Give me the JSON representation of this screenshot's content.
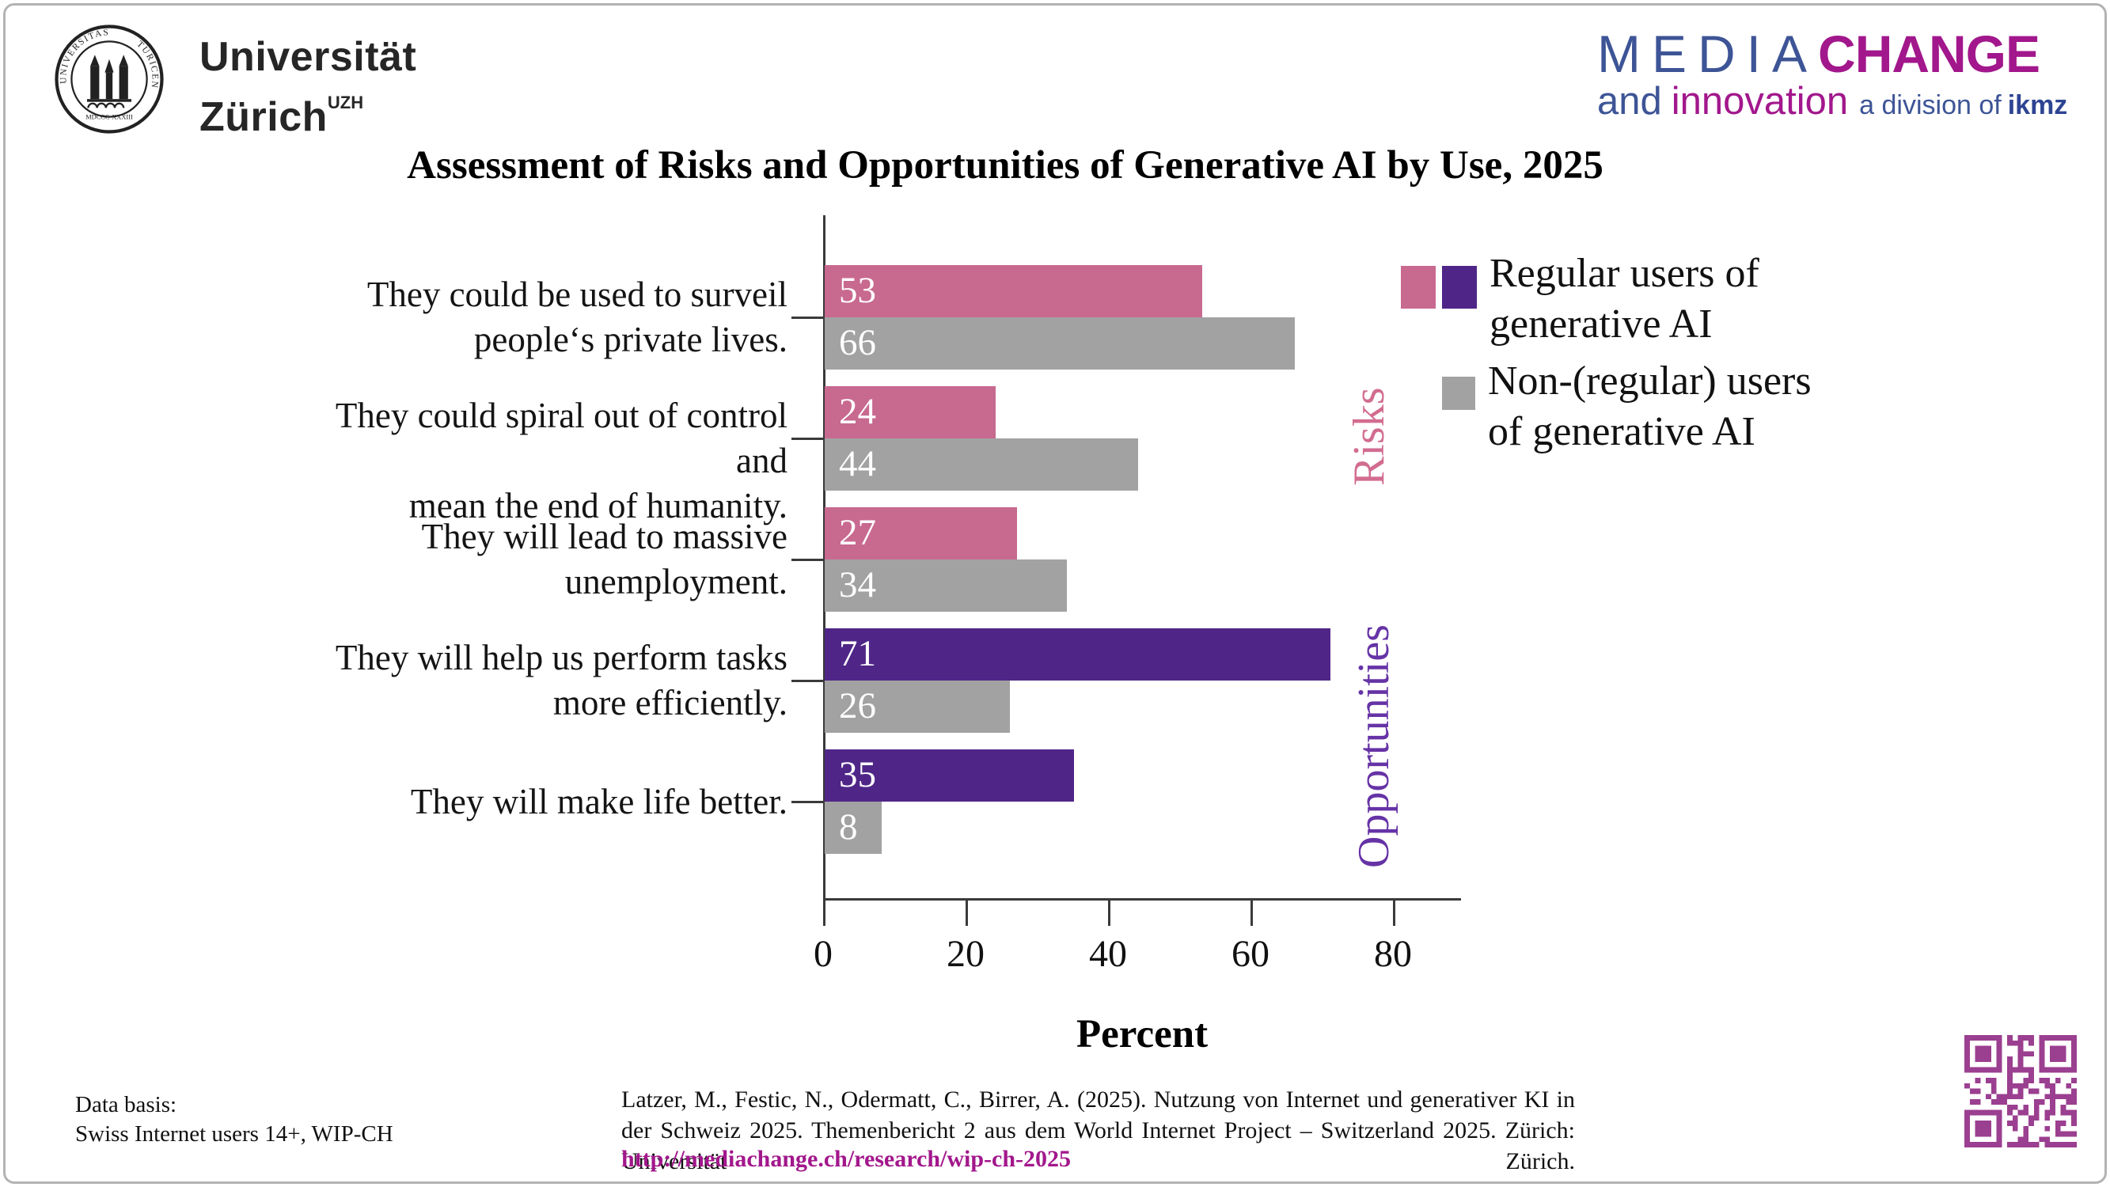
{
  "header": {
    "uzh_logo": {
      "wordmark_line1": "Universität",
      "wordmark_line2": "Zürich",
      "wordmark_sup": "UZH",
      "seal_text_top": "UNIVERSITAS · TURICENSIS",
      "seal_text_bottom": "MDCCC·XXXIII"
    },
    "mediachange_logo": {
      "media": "MEDIA",
      "change": "CHANGE",
      "and": "and",
      "innovation": "innovation",
      "division_of": "a division of",
      "ikmz": "ikmz",
      "blue": "#3d5496",
      "magenta": "#a2178c"
    }
  },
  "title": "Assessment of Risks and Opportunities of Generative AI by Use, 2025",
  "chart_data": {
    "type": "bar",
    "orientation": "horizontal",
    "xlabel": "Percent",
    "x_ticks": [
      "0",
      "20",
      "40",
      "60",
      "80"
    ],
    "xlim": [
      0,
      90
    ],
    "grid": false,
    "legend_position": "right",
    "categories": [
      {
        "line1": "They could be used to surveil",
        "line2": "people‘s private lives."
      },
      {
        "line1": "They could spiral out of control and",
        "line2": "mean the end of humanity."
      },
      {
        "line1": "They will lead to massive",
        "line2": "unemployment."
      },
      {
        "line1": "They will help us perform tasks",
        "line2": "more efficiently."
      },
      {
        "line1": "They will make life better.",
        "line2": ""
      }
    ],
    "series": [
      {
        "name": "Regular users of generative AI",
        "values": [
          53,
          24,
          27,
          71,
          35
        ],
        "bar_colors": [
          "#c8698f",
          "#c8698f",
          "#c8698f",
          "#4f2688",
          "#4f2688"
        ]
      },
      {
        "name": "Non-(regular) users of generative AI",
        "values": [
          66,
          44,
          34,
          26,
          8
        ],
        "bar_colors": [
          "#a2a2a2",
          "#a2a2a2",
          "#a2a2a2",
          "#a2a2a2",
          "#a2a2a2"
        ]
      }
    ],
    "section_labels": [
      {
        "text": "Risks",
        "color": "#d26c90"
      },
      {
        "text": "Opportunities",
        "color": "#6633a6"
      }
    ]
  },
  "legend": {
    "items": [
      {
        "line1": "Regular users of",
        "line2": "generative AI",
        "swatches": [
          "#c8698f",
          "#4f2688"
        ]
      },
      {
        "line1": "Non-(regular) users",
        "line2": "of generative AI",
        "swatches": [
          "#a2a2a2"
        ]
      }
    ]
  },
  "footer": {
    "data_basis_line1": "Data basis:",
    "data_basis_line2": "Swiss Internet users 14+, WIP-CH",
    "citation": "Latzer, M., Festic, N., Odermatt, C., Birrer, A. (2025). Nutzung von Internet und generativer KI in der Schweiz 2025. Themenbericht 2 aus dem World Internet Project – Switzerland 2025. Zürich: Universität Zürich.",
    "citation_url": "http://mediachange.ch/research/wip-ch-2025",
    "qr_color": "#9b3f90"
  }
}
